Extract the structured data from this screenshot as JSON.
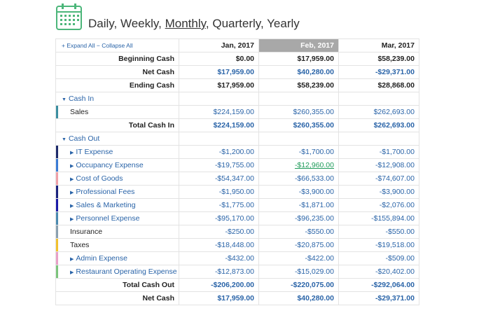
{
  "periods": {
    "daily": "Daily,",
    "weekly": "Weekly,",
    "monthly": "Monthly",
    "sep": ",",
    "quarterly": "Quarterly,",
    "yearly": "Yearly"
  },
  "controls": {
    "expand_all": "Expand All",
    "collapse_all": "Collapse All"
  },
  "columns": [
    "Jan, 2017",
    "Feb, 2017",
    "Mar, 2017"
  ],
  "summary": {
    "beginning_cash": {
      "label": "Beginning Cash",
      "values": [
        "$0.00",
        "$17,959.00",
        "$58,239.00"
      ]
    },
    "net_cash": {
      "label": "Net Cash",
      "values": [
        "$17,959.00",
        "$40,280.00",
        "-$29,371.00"
      ]
    },
    "ending_cash": {
      "label": "Ending Cash",
      "values": [
        "$17,959.00",
        "$58,239.00",
        "$28,868.00"
      ]
    }
  },
  "cash_in": {
    "title": "Cash In",
    "sales": {
      "label": "Sales",
      "color": "#3b8ea0",
      "values": [
        "$224,159.00",
        "$260,355.00",
        "$262,693.00"
      ]
    },
    "total": {
      "label": "Total Cash In",
      "values": [
        "$224,159.00",
        "$260,355.00",
        "$262,693.00"
      ]
    }
  },
  "cash_out": {
    "title": "Cash Out",
    "items": [
      {
        "label": "IT Expense",
        "expandable": true,
        "color": "#1d2b6b",
        "values": [
          "-$1,200.00",
          "-$1,700.00",
          "-$1,700.00"
        ]
      },
      {
        "label": "Occupancy Expense",
        "expandable": true,
        "color": "#3a7bd5",
        "values": [
          "-$19,755.00",
          "-$12,960.00",
          "-$12,908.00"
        ]
      },
      {
        "label": "Cost of Goods",
        "expandable": true,
        "color": "#f0a0a8",
        "values": [
          "-$54,347.00",
          "-$66,533.00",
          "-$74,607.00"
        ]
      },
      {
        "label": "Professional Fees",
        "expandable": true,
        "color": "#1a237e",
        "values": [
          "-$1,950.00",
          "-$3,900.00",
          "-$3,900.00"
        ]
      },
      {
        "label": "Sales & Marketing",
        "expandable": true,
        "color": "#1a1aa8",
        "values": [
          "-$1,775.00",
          "-$1,871.00",
          "-$2,076.00"
        ]
      },
      {
        "label": "Personnel Expense",
        "expandable": true,
        "color": "#4a8ab0",
        "values": [
          "-$95,170.00",
          "-$96,235.00",
          "-$155,894.00"
        ]
      },
      {
        "label": "Insurance",
        "expandable": false,
        "color": "#8aa0b0",
        "values": [
          "-$250.00",
          "-$550.00",
          "-$550.00"
        ]
      },
      {
        "label": "Taxes",
        "expandable": false,
        "color": "#f2c12e",
        "values": [
          "-$18,448.00",
          "-$20,875.00",
          "-$19,518.00"
        ]
      },
      {
        "label": "Admin Expense",
        "expandable": true,
        "color": "#e8a0c8",
        "values": [
          "-$432.00",
          "-$422.00",
          "-$509.00"
        ]
      },
      {
        "label": "Restaurant Operating Expense",
        "expandable": true,
        "color": "#7cc47c",
        "values": [
          "-$12,873.00",
          "-$15,029.00",
          "-$20,402.00"
        ]
      }
    ],
    "total": {
      "label": "Total Cash Out",
      "values": [
        "-$206,200.00",
        "-$220,075.00",
        "-$292,064.00"
      ]
    }
  },
  "net_cash_footer": {
    "label": "Net Cash",
    "values": [
      "$17,959.00",
      "$40,280.00",
      "-$29,371.00"
    ]
  },
  "highlight_column": 1,
  "highlight_cell": "Occupancy Expense / Feb, 2017"
}
